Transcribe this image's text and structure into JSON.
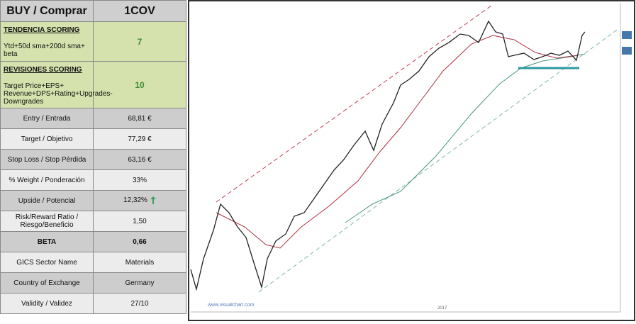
{
  "header": {
    "title": "BUY / Comprar",
    "ticker": "1COV"
  },
  "scores": [
    {
      "title": "TENDENCIA SCORING",
      "text": "Ytd+50d sma+200d  sma+ beta",
      "value": "7"
    },
    {
      "title": "REVISIONES SCORING",
      "text": "Target Price+EPS+ Revenue+DPS+Rating+Upgrades-Downgrades",
      "value": "10"
    }
  ],
  "rows": [
    [
      "Entry / Entrada",
      "68,81 €"
    ],
    [
      "Target / Objetivo",
      "77,29 €"
    ],
    [
      "Stop Loss / Stop Pérdida",
      "63,16 €"
    ],
    [
      "% Weight / Ponderación",
      "33%"
    ],
    [
      "Upside / Potencial",
      "12,32%"
    ],
    [
      "Risk/Reward  Ratio / Riesgo/Beneficio",
      "1,50"
    ],
    [
      "BETA",
      "0,66"
    ],
    [
      "GICS Sector Name",
      "Materials"
    ],
    [
      "Country of Exchange",
      "Germany"
    ],
    [
      "Validity / Validez",
      "27/10"
    ]
  ],
  "chart": {
    "watermark": "www.visualchart.com",
    "year": "2017"
  }
}
